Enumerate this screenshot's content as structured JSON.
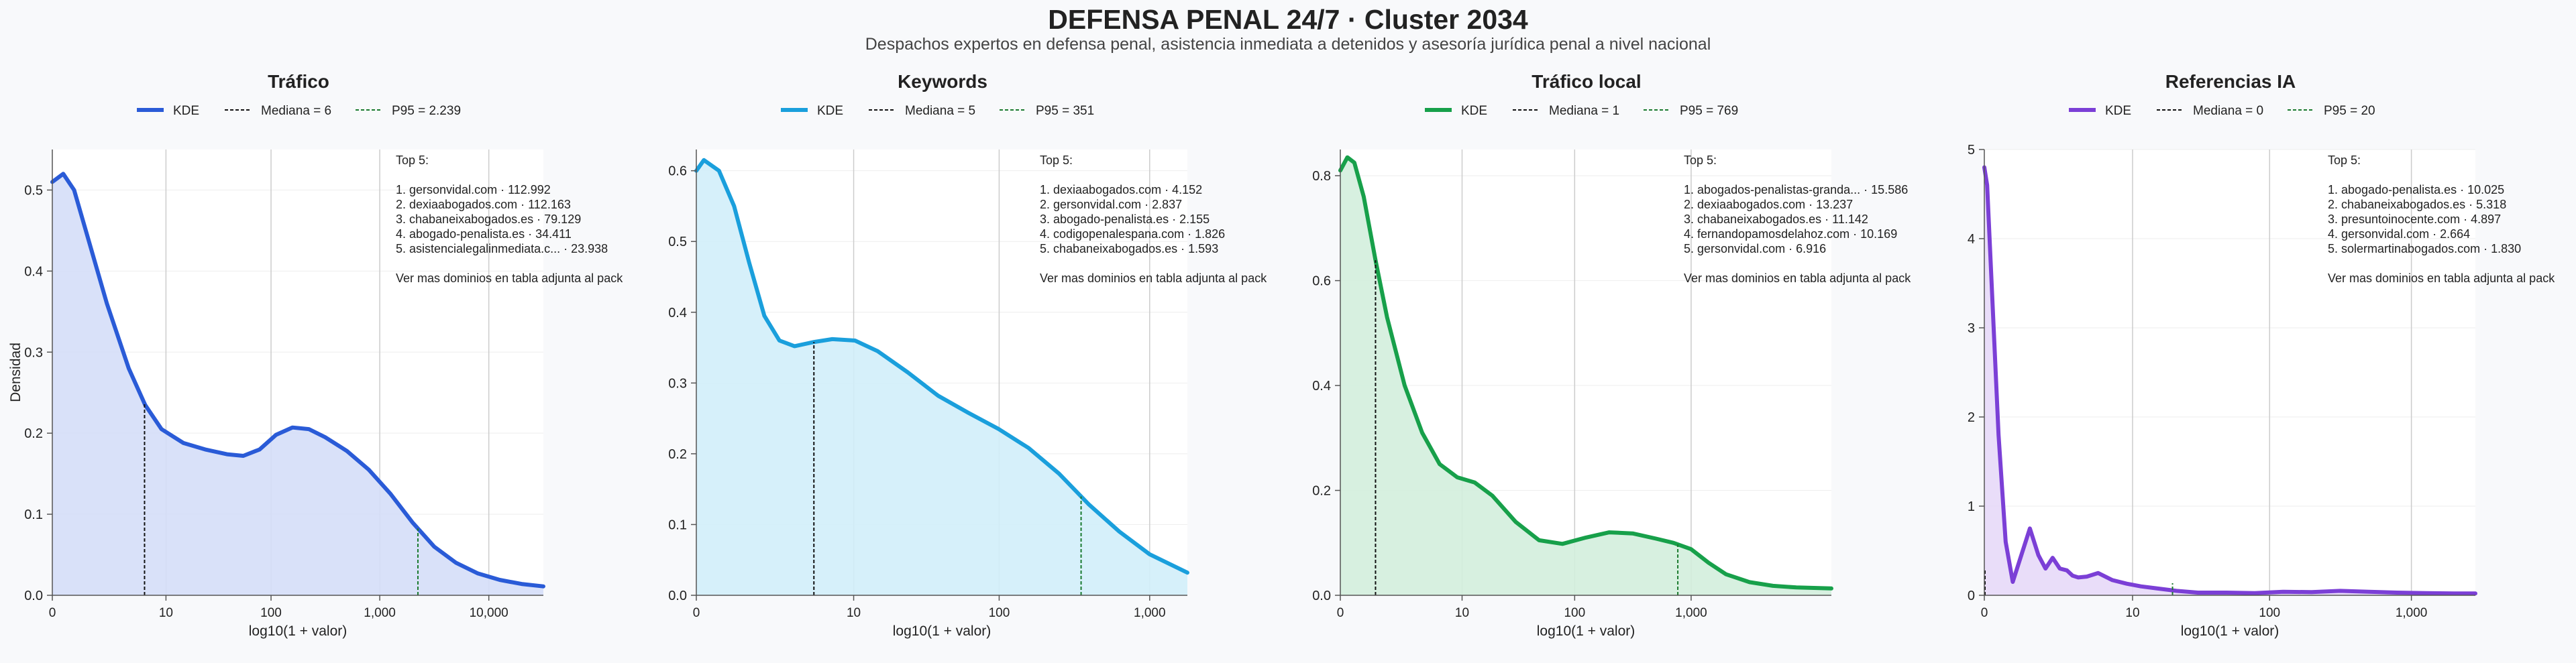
{
  "title": "DEFENSA PENAL 24/7 · Cluster 2034",
  "subtitle": "Despachos expertos en defensa penal, asistencia inmediata a detenidos y asesoría jurídica penal a nivel nacional",
  "shared": {
    "xlabel": "log10(1 + valor)",
    "ylabel": "Densidad",
    "legend_kde": "KDE",
    "top_header": "Top 5:",
    "more_note": "Ver mas dominios en tabla adjunta al pack"
  },
  "chart_data": [
    {
      "type": "area",
      "title": "Tráfico",
      "color": "#2a5bd7",
      "fill": "#d5def8",
      "median_label": "Mediana = 6",
      "p95_label": "P95 = 2.239",
      "median": 6,
      "p95": 2239,
      "xmax_log": 4.5,
      "ylim": [
        0,
        0.55
      ],
      "yticks": [
        0,
        0.1,
        0.2,
        0.3,
        0.4,
        0.5
      ],
      "yticklabels": [
        "0.0",
        "0.1",
        "0.2",
        "0.3",
        "0.4",
        "0.5"
      ],
      "xtick_values": [
        0,
        10,
        100,
        1000,
        10000
      ],
      "xticklabels": [
        "0",
        "10",
        "100",
        "1,000",
        "10,000"
      ],
      "curve_log_x": [
        0,
        0.1,
        0.2,
        0.35,
        0.5,
        0.7,
        0.85,
        1.0,
        1.2,
        1.4,
        1.6,
        1.75,
        1.9,
        2.05,
        2.2,
        2.35,
        2.5,
        2.7,
        2.9,
        3.1,
        3.3,
        3.5,
        3.7,
        3.9,
        4.1,
        4.3,
        4.5
      ],
      "curve_density": [
        0.51,
        0.52,
        0.5,
        0.43,
        0.36,
        0.28,
        0.235,
        0.205,
        0.188,
        0.18,
        0.174,
        0.172,
        0.18,
        0.198,
        0.207,
        0.205,
        0.195,
        0.178,
        0.155,
        0.125,
        0.09,
        0.06,
        0.04,
        0.027,
        0.019,
        0.014,
        0.011
      ],
      "top5": [
        "1. gersonvidal.com · 112.992",
        "2. dexiaabogados.com · 112.163",
        "3. chabaneixabogados.es · 79.129",
        "4. abogado-penalista.es · 34.411",
        "5. asistencialegalinmediata.c... · 23.938"
      ]
    },
    {
      "type": "area",
      "title": "Keywords",
      "color": "#1a9fdc",
      "fill": "#d1eefa",
      "median_label": "Mediana = 5",
      "p95_label": "P95 = 351",
      "median": 5,
      "p95": 351,
      "xmax_log": 3.25,
      "ylim": [
        0,
        0.63
      ],
      "yticks": [
        0,
        0.1,
        0.2,
        0.3,
        0.4,
        0.5,
        0.6
      ],
      "yticklabels": [
        "0.0",
        "0.1",
        "0.2",
        "0.3",
        "0.4",
        "0.5",
        "0.6"
      ],
      "xtick_values": [
        0,
        10,
        100,
        1000
      ],
      "xticklabels": [
        "0",
        "10",
        "100",
        "1,000"
      ],
      "curve_log_x": [
        0,
        0.05,
        0.15,
        0.25,
        0.35,
        0.45,
        0.55,
        0.65,
        0.78,
        0.9,
        1.05,
        1.2,
        1.4,
        1.6,
        1.8,
        2.0,
        2.2,
        2.4,
        2.6,
        2.8,
        3.0,
        3.25
      ],
      "curve_density": [
        0.6,
        0.615,
        0.6,
        0.55,
        0.47,
        0.395,
        0.36,
        0.352,
        0.358,
        0.362,
        0.36,
        0.345,
        0.315,
        0.282,
        0.258,
        0.235,
        0.208,
        0.172,
        0.128,
        0.09,
        0.058,
        0.032
      ],
      "top5": [
        "1. dexiaabogados.com · 4.152",
        "2. gersonvidal.com · 2.837",
        "3. abogado-penalista.es · 2.155",
        "4. codigopenalespana.com · 1.826",
        "5. chabaneixabogados.es · 1.593"
      ]
    },
    {
      "type": "area",
      "title": "Tráfico local",
      "color": "#17a04a",
      "fill": "#d3eedd",
      "median_label": "Mediana = 1",
      "p95_label": "P95 = 769",
      "median": 1,
      "p95": 769,
      "xmax_log": 4.2,
      "ylim": [
        0,
        0.85
      ],
      "yticks": [
        0,
        0.2,
        0.4,
        0.6,
        0.8
      ],
      "yticklabels": [
        "0.0",
        "0.2",
        "0.4",
        "0.6",
        "0.8"
      ],
      "xtick_values": [
        0,
        10,
        100,
        1000
      ],
      "xticklabels": [
        "0",
        "10",
        "100",
        "1,000"
      ],
      "curve_log_x": [
        0,
        0.06,
        0.12,
        0.2,
        0.3,
        0.4,
        0.55,
        0.7,
        0.85,
        1.0,
        1.15,
        1.3,
        1.5,
        1.7,
        1.9,
        2.1,
        2.3,
        2.5,
        2.7,
        2.85,
        3.0,
        3.15,
        3.3,
        3.5,
        3.7,
        3.9,
        4.2
      ],
      "curve_density": [
        0.81,
        0.835,
        0.825,
        0.76,
        0.64,
        0.53,
        0.4,
        0.31,
        0.25,
        0.225,
        0.215,
        0.19,
        0.14,
        0.105,
        0.098,
        0.11,
        0.12,
        0.118,
        0.108,
        0.1,
        0.088,
        0.062,
        0.04,
        0.025,
        0.018,
        0.015,
        0.013
      ],
      "top5": [
        "1. abogados-penalistas-granda... · 15.586",
        "2. dexiaabogados.com · 13.237",
        "3. chabaneixabogados.es · 11.142",
        "4. fernandopamosdelahoz.com · 10.169",
        "5. gersonvidal.com · 6.916"
      ]
    },
    {
      "type": "area",
      "title": "Referencias IA",
      "color": "#7b3fd6",
      "fill": "#e7d9f8",
      "median_label": "Mediana = 0",
      "p95_label": "P95 = 20",
      "median": 0,
      "p95": 20,
      "xmax_log": 3.45,
      "ylim": [
        0,
        5
      ],
      "yticks": [
        0,
        1,
        2,
        3,
        4,
        5
      ],
      "yticklabels": [
        "0",
        "1",
        "2",
        "3",
        "4",
        "5"
      ],
      "xtick_values": [
        0,
        10,
        100,
        1000
      ],
      "xticklabels": [
        "0",
        "10",
        "100",
        "1,000"
      ],
      "curve_log_x": [
        0,
        0.02,
        0.06,
        0.1,
        0.15,
        0.2,
        0.25,
        0.32,
        0.38,
        0.43,
        0.48,
        0.53,
        0.58,
        0.62,
        0.66,
        0.72,
        0.8,
        0.9,
        1.0,
        1.1,
        1.2,
        1.35,
        1.5,
        1.7,
        1.9,
        2.1,
        2.3,
        2.5,
        2.7,
        2.9,
        3.1,
        3.3,
        3.45
      ],
      "curve_density": [
        4.8,
        4.6,
        3.2,
        1.8,
        0.6,
        0.15,
        0.4,
        0.75,
        0.45,
        0.3,
        0.42,
        0.3,
        0.28,
        0.22,
        0.2,
        0.21,
        0.25,
        0.17,
        0.13,
        0.1,
        0.08,
        0.05,
        0.03,
        0.03,
        0.025,
        0.04,
        0.035,
        0.05,
        0.04,
        0.03,
        0.025,
        0.02,
        0.02
      ],
      "top5": [
        "1. abogado-penalista.es · 10.025",
        "2. chabaneixabogados.es · 5.318",
        "3. presuntoinocente.com · 4.897",
        "4. gersonvidal.com · 2.664",
        "5. solermartinabogados.com · 1.830"
      ]
    }
  ]
}
